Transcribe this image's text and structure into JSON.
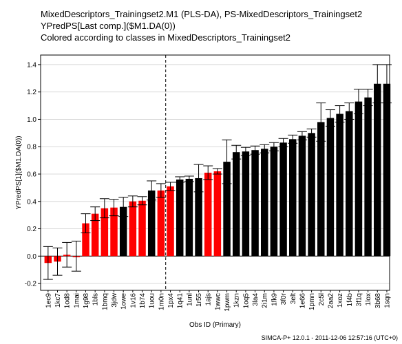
{
  "titles": [
    "MixedDescriptors_Trainingset2.M1 (PLS-DA), PS-MixedDescriptors_Trainingset2",
    "YPredPS[Last comp.]($M1.DA(0))",
    "Colored according to classes in MixedDescriptors_Trainingset2"
  ],
  "footer": "SIMCA-P+ 12.0.1 - 2011-12-06 12:57:16 (UTC+0)",
  "colors": {
    "red": "#ff0000",
    "black": "#000000",
    "grid": "#d8d8d8"
  },
  "chart_data": {
    "type": "bar",
    "xlabel": "Obs ID (Primary)",
    "ylabel": "YPredPS[1]($M1.DA(0))",
    "ylim": [
      -0.25,
      1.47
    ],
    "yticks": [
      -0.2,
      0.0,
      0.2,
      0.4,
      0.6,
      0.8,
      1.0,
      1.2,
      1.4
    ],
    "grid": true,
    "vline_after_category": "1m0n",
    "categories": [
      "1ec9",
      "1kc7",
      "1od8",
      "1mai",
      "1g98",
      "1bls",
      "1bmq",
      "3jdw",
      "1owe",
      "1v16",
      "1b74",
      "1uou",
      "1m0n",
      "1px4",
      "1q41",
      "1unl",
      "1r55",
      "1ajs",
      "1wwc",
      "1pwm",
      "1kzn",
      "1oq5",
      "3la4",
      "2i1m",
      "1fk9",
      "3f0r",
      "3elt",
      "1e66",
      "1pmn",
      "2c5l",
      "2aa2",
      "1xoz",
      "1f4b",
      "3f1q",
      "1lox",
      "3b68",
      "1sqn"
    ],
    "values": [
      -0.05,
      -0.04,
      0.01,
      0.0,
      0.24,
      0.31,
      0.35,
      0.355,
      0.36,
      0.4,
      0.405,
      0.48,
      0.48,
      0.51,
      0.56,
      0.565,
      0.57,
      0.61,
      0.62,
      0.69,
      0.76,
      0.765,
      0.775,
      0.785,
      0.8,
      0.83,
      0.855,
      0.88,
      0.9,
      0.98,
      1.01,
      1.04,
      1.06,
      1.13,
      1.16,
      1.26,
      1.26
    ],
    "errors": [
      0.12,
      0.1,
      0.09,
      0.11,
      0.07,
      0.05,
      0.07,
      0.06,
      0.07,
      0.04,
      0.03,
      0.07,
      0.05,
      0.03,
      0.02,
      0.02,
      0.1,
      0.05,
      0.02,
      0.16,
      0.05,
      0.03,
      0.03,
      0.03,
      0.03,
      0.03,
      0.03,
      0.03,
      0.03,
      0.14,
      0.06,
      0.06,
      0.06,
      0.09,
      0.06,
      0.14,
      0.14
    ],
    "classes": [
      "red",
      "red",
      "red",
      "red",
      "red",
      "red",
      "red",
      "red",
      "black",
      "red",
      "red",
      "black",
      "red",
      "red",
      "black",
      "black",
      "black",
      "red",
      "red",
      "black",
      "black",
      "black",
      "black",
      "black",
      "black",
      "black",
      "black",
      "black",
      "black",
      "black",
      "black",
      "black",
      "black",
      "black",
      "black",
      "black",
      "black"
    ]
  }
}
